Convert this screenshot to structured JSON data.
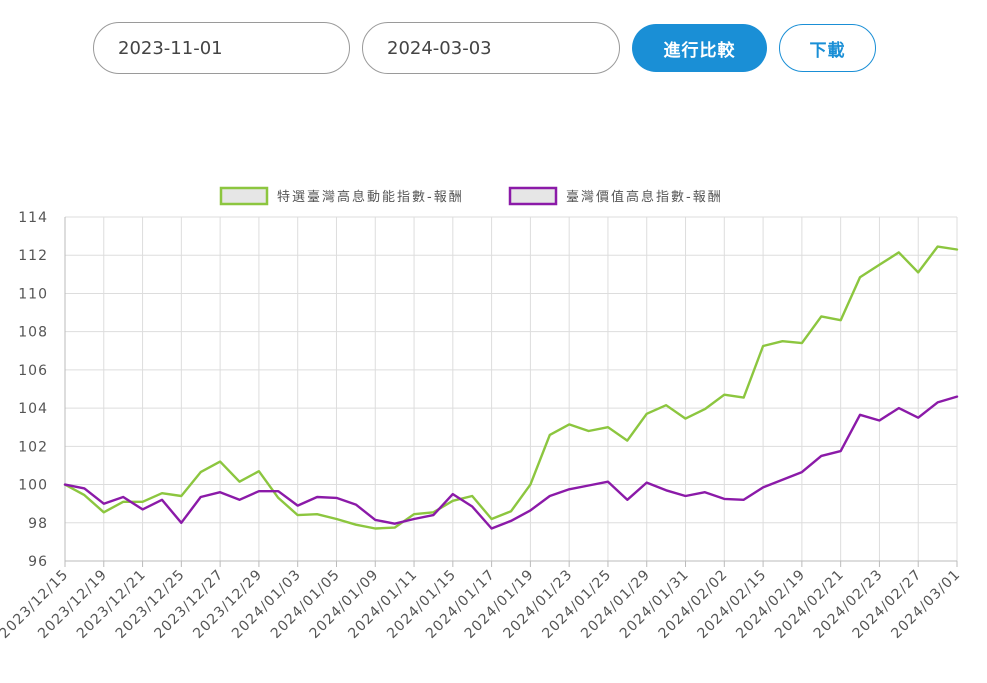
{
  "controls": {
    "start_date": "2023-11-01",
    "end_date": "2024-03-03",
    "compare_label": "進行比較",
    "download_label": "下載"
  },
  "chart_data": {
    "type": "line",
    "categories": [
      "2023/12/15",
      "2023/12/19",
      "2023/12/21",
      "2023/12/25",
      "2023/12/27",
      "2023/12/29",
      "2024/01/03",
      "2024/01/05",
      "2024/01/09",
      "2024/01/11",
      "2024/01/15",
      "2024/01/17",
      "2024/01/19",
      "2024/01/23",
      "2024/01/25",
      "2024/01/29",
      "2024/01/31",
      "2024/02/02",
      "2024/02/15",
      "2024/02/19",
      "2024/02/21",
      "2024/02/23",
      "2024/02/27",
      "2024/03/01"
    ],
    "x": [
      0,
      1,
      2,
      3,
      4,
      5,
      6,
      7,
      8,
      9,
      10,
      11,
      12,
      13,
      14,
      15,
      16,
      17,
      18,
      19,
      20,
      21,
      22,
      23,
      24,
      25,
      26,
      27,
      28,
      29,
      30,
      31,
      32,
      33,
      34,
      35,
      36,
      37,
      38,
      39,
      40,
      41,
      42,
      43,
      44,
      45,
      46
    ],
    "series": [
      {
        "name": "特選臺灣高息動能指數-報酬",
        "color": "#8cc63f",
        "values": [
          100.0,
          99.45,
          98.55,
          99.1,
          99.1,
          99.55,
          99.4,
          100.65,
          101.2,
          100.15,
          100.7,
          99.3,
          98.4,
          98.45,
          98.2,
          97.9,
          97.7,
          97.75,
          98.45,
          98.55,
          99.15,
          99.4,
          98.2,
          98.6,
          100.0,
          102.6,
          103.15,
          102.8,
          103.0,
          102.3,
          103.7,
          104.15,
          103.45,
          103.95,
          104.7,
          104.55,
          107.25,
          107.5,
          107.4,
          108.8,
          108.6,
          110.85,
          111.5,
          112.15,
          111.1,
          112.45,
          112.3
        ]
      },
      {
        "name": "臺灣價值高息指數-報酬",
        "color": "#8b1aa8",
        "values": [
          100.0,
          99.8,
          99.0,
          99.35,
          98.7,
          99.2,
          98.0,
          99.35,
          99.6,
          99.2,
          99.65,
          99.65,
          98.9,
          99.35,
          99.3,
          98.95,
          98.15,
          97.95,
          98.2,
          98.4,
          99.5,
          98.85,
          97.7,
          98.1,
          98.65,
          99.4,
          99.75,
          99.95,
          100.15,
          99.2,
          100.1,
          99.7,
          99.4,
          99.6,
          99.25,
          99.2,
          99.85,
          100.25,
          100.65,
          101.5,
          101.75,
          103.65,
          103.35,
          104.0,
          103.5,
          104.3,
          104.6
        ]
      }
    ],
    "title": "",
    "xlabel": "",
    "ylabel": "",
    "ylim": [
      96,
      114
    ],
    "yticks": [
      "96",
      "98",
      "100",
      "102",
      "104",
      "106",
      "108",
      "110",
      "112",
      "114"
    ],
    "grid": true,
    "legend_position": "top-center"
  }
}
